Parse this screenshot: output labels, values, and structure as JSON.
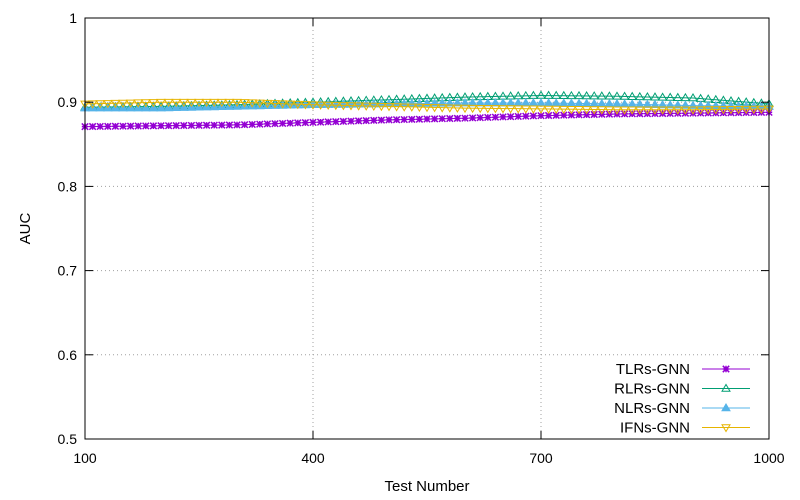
{
  "chart_data": {
    "type": "line",
    "xlabel": "Test Number",
    "ylabel": "AUC",
    "xlim": [
      100,
      1000
    ],
    "ylim": [
      0.5,
      1.0
    ],
    "xticks": [
      100,
      400,
      700,
      1000
    ],
    "yticks": [
      0.5,
      0.6,
      0.7,
      0.8,
      0.9,
      1.0
    ],
    "ytick_labels": [
      "0.5",
      "0.6",
      "0.7",
      "0.8",
      "0.9",
      "1"
    ],
    "grid": true,
    "legend_position": "bottom-right",
    "x": [
      100,
      200,
      300,
      400,
      500,
      600,
      700,
      800,
      900,
      1000
    ],
    "series": [
      {
        "name": "TLRs-GNN",
        "color": "#9400d3",
        "marker": "star",
        "values": [
          0.871,
          0.872,
          0.873,
          0.876,
          0.879,
          0.881,
          0.884,
          0.886,
          0.887,
          0.888
        ]
      },
      {
        "name": "RLRs-GNN",
        "color": "#009e73",
        "marker": "triangle-up-open",
        "values": [
          0.894,
          0.895,
          0.897,
          0.9,
          0.903,
          0.906,
          0.908,
          0.907,
          0.905,
          0.898
        ]
      },
      {
        "name": "NLRs-GNN",
        "color": "#56b4e9",
        "marker": "triangle-up-filled",
        "values": [
          0.893,
          0.893,
          0.895,
          0.897,
          0.898,
          0.899,
          0.899,
          0.898,
          0.896,
          0.895
        ]
      },
      {
        "name": "IFNs-GNN",
        "color": "#e6b400",
        "marker": "triangle-down-open",
        "values": [
          0.898,
          0.9,
          0.9,
          0.897,
          0.895,
          0.893,
          0.892,
          0.891,
          0.891,
          0.892
        ]
      }
    ]
  }
}
